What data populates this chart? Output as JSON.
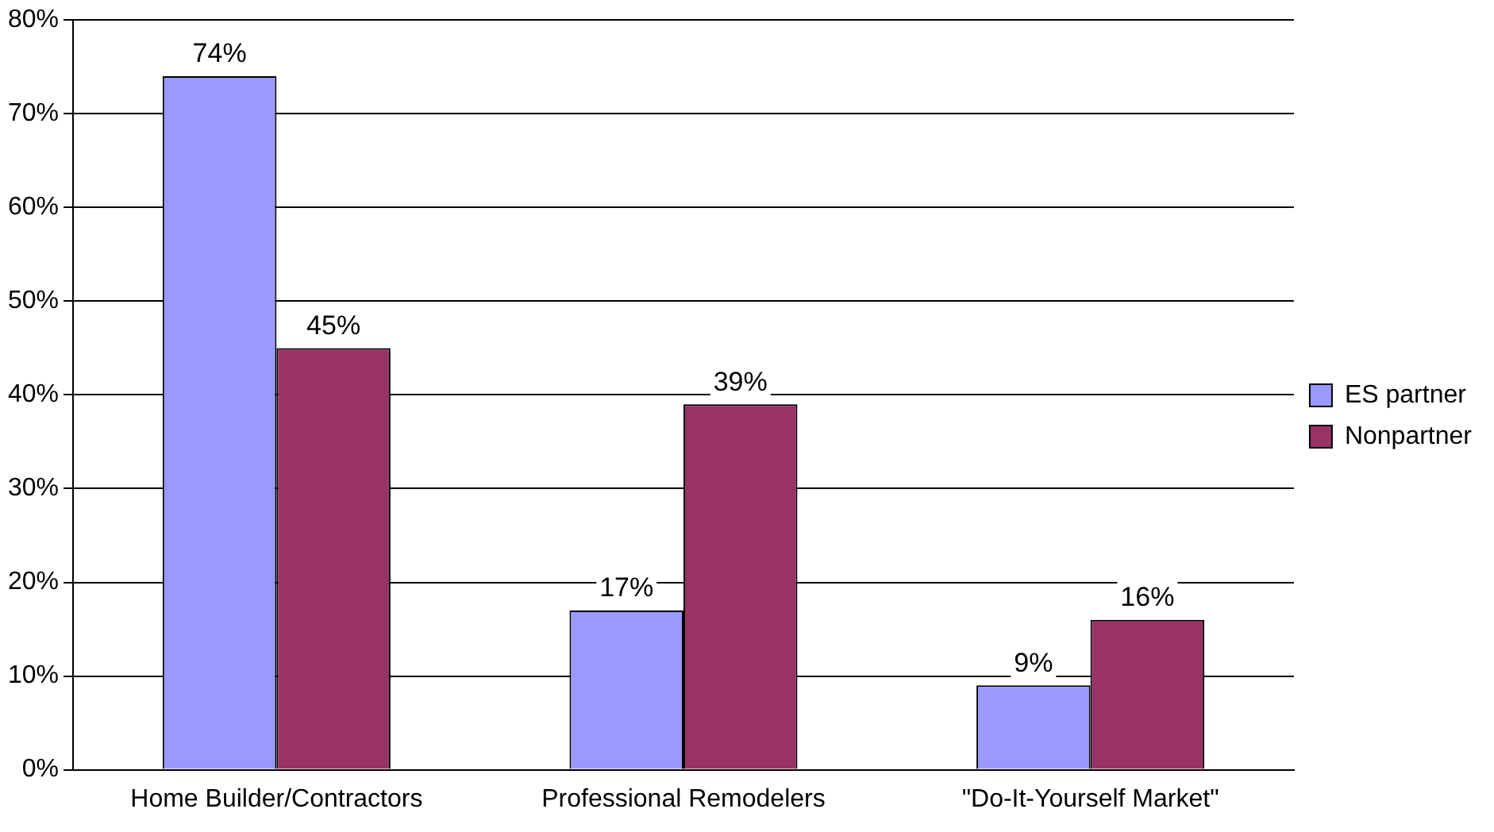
{
  "chart_data": {
    "type": "bar",
    "categories": [
      "Home Builder/Contractors",
      "Professional Remodelers",
      "\"Do-It-Yourself Market\""
    ],
    "series": [
      {
        "name": "ES partner",
        "color": "#9999ff",
        "values": [
          74,
          17,
          9
        ],
        "value_labels": [
          "74%",
          "17%",
          "9%"
        ]
      },
      {
        "name": "Nonpartner",
        "color": "#993366",
        "values": [
          45,
          39,
          16
        ],
        "value_labels": [
          "45%",
          "39%",
          "16%"
        ]
      }
    ],
    "ylim": [
      0,
      80
    ],
    "yticks": [
      {
        "value": 0,
        "label": "0%"
      },
      {
        "value": 10,
        "label": "10%"
      },
      {
        "value": 20,
        "label": "20%"
      },
      {
        "value": 30,
        "label": "30%"
      },
      {
        "value": 40,
        "label": "40%"
      },
      {
        "value": 50,
        "label": "50%"
      },
      {
        "value": 60,
        "label": "60%"
      },
      {
        "value": 70,
        "label": "70%"
      },
      {
        "value": 80,
        "label": "80%"
      }
    ],
    "grid": "y",
    "legend": "right"
  }
}
